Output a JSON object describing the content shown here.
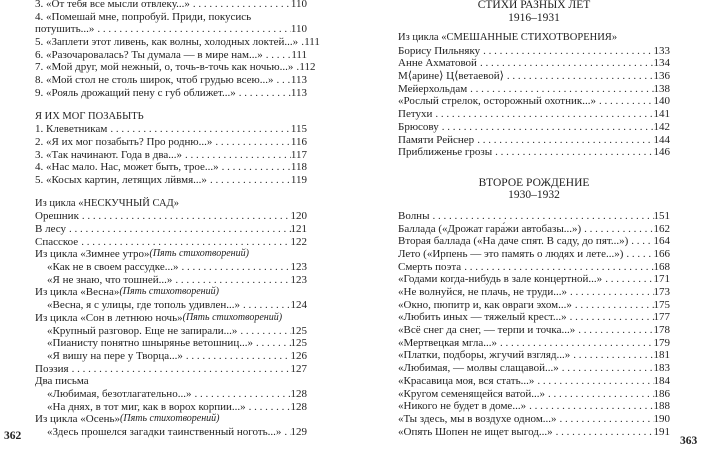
{
  "left_page": {
    "folio": "362",
    "sections": [
      {
        "heading": "",
        "entries": [
          {
            "text": "3. «От тебя все мысли отвлеку...»",
            "page": "110"
          },
          {
            "text": "4. «Помешай мне, попробуй. Приди, покусись",
            "page": ""
          },
          {
            "text": "потушить...»",
            "page": "110"
          },
          {
            "text": "5. «Заплети этот ливень, как волны, холодных локтей...»",
            "page": "111"
          },
          {
            "text": "6. «Разочаровалась? Ты думала — в мире нам...»",
            "page": "111"
          },
          {
            "text": "7. «Мой друг, мой нежный, о, точь-в-точь как ночью...»",
            "page": "112"
          },
          {
            "text": "8. «Мой стол не столь широк, чтоб грудью всею...»",
            "page": "113"
          },
          {
            "text": "9. «Рояль дрожащий пену с губ оближет...»",
            "page": "113"
          }
        ]
      },
      {
        "heading": "Я ИХ МОГ ПОЗАБЫТЬ",
        "entries": [
          {
            "text": "1. Клеветникам",
            "page": "115"
          },
          {
            "text": "2. «Я их мог позабыть? Про родню...»",
            "page": "116"
          },
          {
            "text": "3. «Так начинают. Года в два...»",
            "page": "117"
          },
          {
            "text": "4. «Нас мало. Нас, может быть, трое...»",
            "page": "118"
          },
          {
            "text": "5. «Косых картин, летящих лйвмя...»",
            "page": "119"
          }
        ]
      },
      {
        "heading": "Из цикла «НЕСКУЧНЫЙ САД»",
        "entries": [
          {
            "text": "Орешник",
            "page": "120"
          },
          {
            "text": "В лесу",
            "page": "121"
          },
          {
            "text": "Спасское",
            "page": "122"
          },
          {
            "text": "Из цикла «Зимнее утро»",
            "note": "(Пять стихотворений)",
            "page": ""
          },
          {
            "text": "«Как не в своем рассудке...»",
            "page": "123",
            "indent": true
          },
          {
            "text": "«Я не знаю, что тошней...»",
            "page": "123",
            "indent": true
          },
          {
            "text": "Из цикла «Весна»",
            "note": "(Пять стихотворений)",
            "page": ""
          },
          {
            "text": "«Весна, я с улицы, где тополь удивлен...»",
            "page": "124",
            "indent": true
          },
          {
            "text": "Из цикла «Сон в летнюю ночь»",
            "note": "(Пять стихотворений)",
            "page": ""
          },
          {
            "text": "«Крупный разговор. Еще не запирали...»",
            "page": "125",
            "indent": true
          },
          {
            "text": "«Пианисту понятно шныряньe ветошниц...»",
            "page": "125",
            "indent": true
          },
          {
            "text": "«Я вишу на пере у Творца...»",
            "page": "126",
            "indent": true
          },
          {
            "text": "Поэзия",
            "page": "127"
          },
          {
            "text": "Два письма",
            "page": ""
          },
          {
            "text": "«Любимая, безотлагательно...»",
            "page": "128",
            "indent": true
          },
          {
            "text": "«На днях, в тот миг, как в ворох корпии...»",
            "page": "128",
            "indent": true
          },
          {
            "text": "Из цикла «Осень»",
            "note": "(Пять стихотворений)",
            "page": ""
          },
          {
            "text": "«Здесь прошелся загадки таинственный ноготь...»",
            "page": "129",
            "indent": true
          }
        ]
      }
    ]
  },
  "right_page": {
    "folio": "363",
    "sections": [
      {
        "title": "СТИХИ РАЗНЫХ ЛЕТ",
        "years": "1916–1931",
        "heading": "Из цикла «СМЕШАННЫЕ СТИХОТВОРЕНИЯ»",
        "entries": [
          {
            "text": "Борису Пильняку",
            "page": "133"
          },
          {
            "text": "Анне Ахматовой",
            "page": "134"
          },
          {
            "text": "М⟨арине⟩ Ц⟨ветаевой⟩",
            "page": "136"
          },
          {
            "text": "Мейерхольдам",
            "page": "138"
          },
          {
            "text": "«Рослый стрелок, осторожный охотник...»",
            "page": "140"
          },
          {
            "text": "Петухи",
            "page": "141"
          },
          {
            "text": "Брюсову",
            "page": "142"
          },
          {
            "text": "Памяти Рейснер",
            "page": "144"
          },
          {
            "text": "Приближенье грозы",
            "page": "146"
          }
        ]
      },
      {
        "title": "ВТОРОЕ РОЖДЕНИЕ",
        "years": "1930–1932",
        "heading": "",
        "entries": [
          {
            "text": "Волны",
            "page": "151"
          },
          {
            "text": "Баллада («Дрожат гара́жи автобазы...»)",
            "page": "162"
          },
          {
            "text": "Вторая баллада («На даче спят. В саду, до пят...»)",
            "page": "164"
          },
          {
            "text": "Лето («Ирпень — это память о людях и лете...»)",
            "page": "166"
          },
          {
            "text": "Смерть поэта",
            "page": "168"
          },
          {
            "text": "«Годами когда-нибудь в зале концертной...»",
            "page": "171"
          },
          {
            "text": "«Не волнуйся, не плачь, не труди...»",
            "page": "173"
          },
          {
            "text": "«Окно, пюпитр и, как овраги эхом...»",
            "page": "175"
          },
          {
            "text": "«Любить иных — тяжелый крест...»",
            "page": "177"
          },
          {
            "text": "«Всё снег да снег, — терпи и точка...»",
            "page": "178"
          },
          {
            "text": "«Мертвецкая мгла...»",
            "page": "179"
          },
          {
            "text": "«Платки, подборы, жгучий взгляд...»",
            "page": "181"
          },
          {
            "text": "«Любимая, — молвы слащавой...»",
            "page": "183"
          },
          {
            "text": "«Красавица моя, вся стать...»",
            "page": "184"
          },
          {
            "text": "«Кругом семенящейся ватой...»",
            "page": "186"
          },
          {
            "text": "«Никого не будет в доме...»",
            "page": "188"
          },
          {
            "text": "«Ты здесь, мы в воздухе одном...»",
            "page": "190"
          },
          {
            "text": "«Опять Шопен не ищет выгод...»",
            "page": "191"
          }
        ]
      }
    ]
  }
}
